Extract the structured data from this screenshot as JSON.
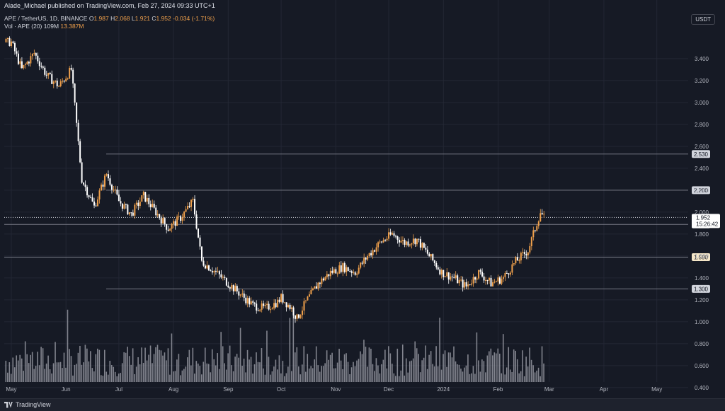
{
  "header": {
    "publisher": "Alade_Michael published on TradingView.com, Feb 27, 2024 09:33 UTC+1",
    "symbol_line": {
      "symbol": "APE / TetherUS, 1D, BINANCE",
      "o_label": "O",
      "o": "1.987",
      "h_label": "H",
      "h": "2.068",
      "l_label": "L",
      "l": "1.921",
      "c_label": "C",
      "c": "1.952",
      "change": "-0.034 (-1.71%)"
    },
    "volume_line": {
      "label": "Vol · APE (20)",
      "v1": "109M",
      "v2": "13.387M"
    }
  },
  "currency_button": "USDT",
  "footer": {
    "logo_text": "TradingView"
  },
  "colors": {
    "background": "#161a25",
    "up": "#f0a04b",
    "down": "#ffffff",
    "grid": "#232734",
    "hline": "#787b86",
    "volume": "#9598a1"
  },
  "chart_data": {
    "type": "candlestick",
    "title": "",
    "xlabel": "",
    "ylabel": "",
    "x_ticks": [
      "May",
      "Jun",
      "Jul",
      "Aug",
      "Sep",
      "Oct",
      "Nov",
      "Dec",
      "2024",
      "Feb",
      "Mar",
      "Apr",
      "May"
    ],
    "y_ticks": [
      "3.400",
      "3.200",
      "3.000",
      "2.800",
      "2.600",
      "2.400",
      "2.200",
      "2.000",
      "1.800",
      "1.600",
      "1.400",
      "1.200",
      "1.000",
      "0.800",
      "0.600",
      "0.400"
    ],
    "ylim": [
      0.3,
      3.6
    ],
    "grid": true,
    "price_series": {
      "name": "APE / TetherUS",
      "x": [
        "2023-05-01",
        "2023-05-07",
        "2023-05-14",
        "2023-05-21",
        "2023-05-28",
        "2023-06-04",
        "2023-06-10",
        "2023-06-17",
        "2023-06-24",
        "2023-07-01",
        "2023-07-08",
        "2023-07-15",
        "2023-07-22",
        "2023-07-29",
        "2023-08-05",
        "2023-08-12",
        "2023-08-17",
        "2023-08-25",
        "2023-09-01",
        "2023-09-08",
        "2023-09-15",
        "2023-09-22",
        "2023-09-29",
        "2023-10-01",
        "2023-10-07",
        "2023-10-10",
        "2023-10-15",
        "2023-10-22",
        "2023-10-29",
        "2023-11-05",
        "2023-11-12",
        "2023-11-19",
        "2023-11-26",
        "2023-12-03",
        "2023-12-10",
        "2023-12-17",
        "2023-12-24",
        "2023-12-31",
        "2024-01-07",
        "2024-01-14",
        "2024-01-21",
        "2024-01-28",
        "2024-02-04",
        "2024-02-11",
        "2024-02-18",
        "2024-02-22",
        "2024-02-25",
        "2024-02-27"
      ],
      "close": [
        3.55,
        3.3,
        3.45,
        3.25,
        3.15,
        3.3,
        2.3,
        2.05,
        2.35,
        2.1,
        1.98,
        2.15,
        2.0,
        1.85,
        1.95,
        2.1,
        1.55,
        1.45,
        1.35,
        1.25,
        1.15,
        1.12,
        1.18,
        1.22,
        1.12,
        1.03,
        1.18,
        1.35,
        1.45,
        1.5,
        1.45,
        1.6,
        1.72,
        1.8,
        1.72,
        1.75,
        1.6,
        1.45,
        1.4,
        1.32,
        1.45,
        1.35,
        1.4,
        1.55,
        1.65,
        1.85,
        2.0,
        1.952
      ]
    },
    "reference_levels": [
      "2.530",
      "2.200",
      "1.888",
      "1.590",
      "1.300"
    ],
    "current_price": "1.952",
    "countdown": "15:26:42",
    "volume_series": {
      "name": "Vol · APE",
      "peak_values_M": [
        109,
        60,
        95,
        120,
        140,
        85,
        170,
        110,
        150
      ]
    }
  }
}
